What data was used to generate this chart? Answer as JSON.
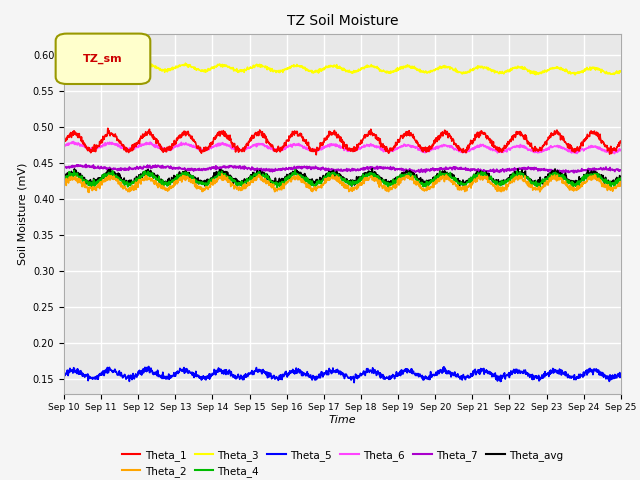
{
  "title": "TZ Soil Moisture",
  "xlabel": "Time",
  "ylabel": "Soil Moisture (mV)",
  "ylim": [
    0.13,
    0.63
  ],
  "yticks": [
    0.15,
    0.2,
    0.25,
    0.3,
    0.35,
    0.4,
    0.45,
    0.5,
    0.55,
    0.6
  ],
  "xtick_labels": [
    "Sep 10",
    "Sep 11",
    "Sep 12",
    "Sep 13",
    "Sep 14",
    "Sep 15",
    "Sep 16",
    "Sep 17",
    "Sep 18",
    "Sep 19",
    "Sep 20",
    "Sep 21",
    "Sep 22",
    "Sep 23",
    "Sep 24",
    "Sep 25"
  ],
  "n_days": 15,
  "n_points": 1500,
  "series": {
    "Theta_1": {
      "color": "#ff0000",
      "base": 0.48,
      "amp": 0.012,
      "period": 1.0,
      "noise": 0.002
    },
    "Theta_2": {
      "color": "#ffa500",
      "base": 0.422,
      "amp": 0.008,
      "period": 1.0,
      "noise": 0.002
    },
    "Theta_3": {
      "color": "#ffff00",
      "base": 0.584,
      "amp": 0.004,
      "period": 1.0,
      "noise": 0.001
    },
    "Theta_4": {
      "color": "#00bb00",
      "base": 0.428,
      "amp": 0.007,
      "period": 1.0,
      "noise": 0.002
    },
    "Theta_5": {
      "color": "#0000ff",
      "base": 0.157,
      "amp": 0.005,
      "period": 1.0,
      "noise": 0.002
    },
    "Theta_6": {
      "color": "#ff44ff",
      "base": 0.474,
      "amp": 0.004,
      "period": 1.0,
      "noise": 0.001
    },
    "Theta_7": {
      "color": "#aa00cc",
      "base": 0.444,
      "amp": 0.002,
      "period": 2.0,
      "noise": 0.001
    },
    "Theta_avg": {
      "color": "#000000",
      "base": 0.43,
      "amp": 0.007,
      "period": 1.0,
      "noise": 0.002
    }
  },
  "legend_box_text": "TZ_sm",
  "legend_box_bg": "#ffffcc",
  "legend_box_edge": "#999900",
  "plot_bg": "#e8e8e8",
  "fig_bg": "#f5f5f5"
}
